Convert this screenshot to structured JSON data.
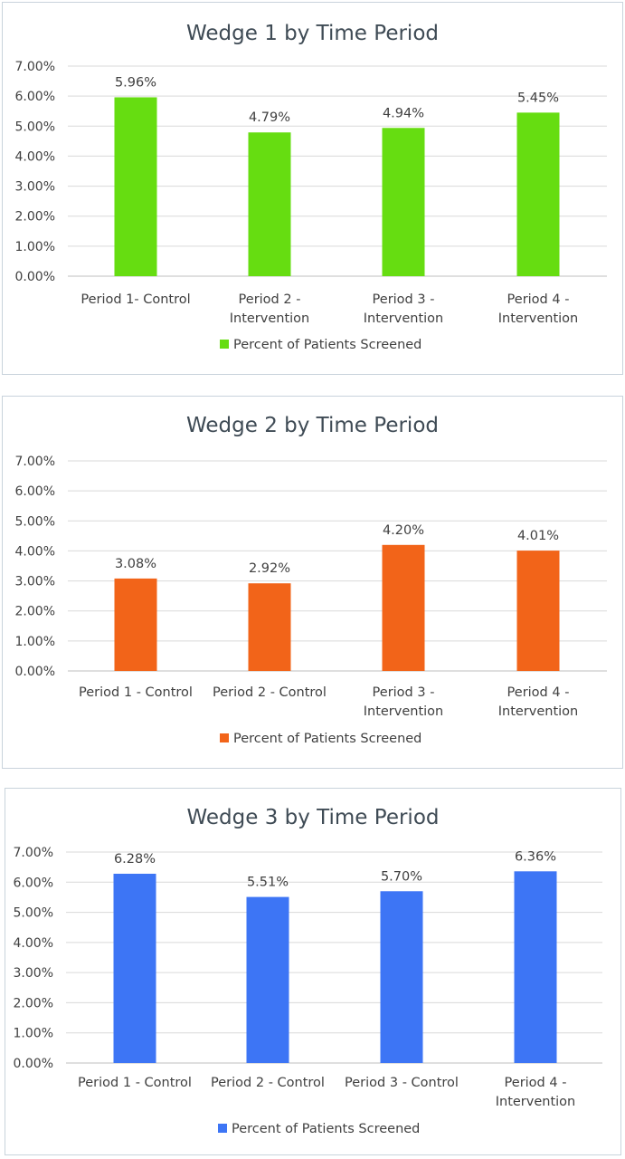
{
  "chart_data": [
    {
      "type": "bar",
      "title": "Wedge 1 by Time Period",
      "categories": [
        [
          "Period 1- Control"
        ],
        [
          "Period 2 -",
          "Intervention"
        ],
        [
          "Period 3 -",
          "Intervention"
        ],
        [
          "Period 4 -",
          "Intervention"
        ]
      ],
      "series": [
        {
          "name": "Percent of Patients Screened",
          "values": [
            5.96,
            4.79,
            4.94,
            5.45
          ],
          "color": "#66dd11"
        }
      ],
      "data_labels": [
        "5.96%",
        "4.79%",
        "4.94%",
        "5.45%"
      ],
      "yticks": [
        "0.00%",
        "1.00%",
        "2.00%",
        "3.00%",
        "4.00%",
        "5.00%",
        "6.00%",
        "7.00%"
      ],
      "ylim": [
        0,
        7
      ],
      "grid": true,
      "legend": "bottom"
    },
    {
      "type": "bar",
      "title": "Wedge 2 by Time Period",
      "categories": [
        [
          "Period 1 - Control"
        ],
        [
          "Period 2 - Control"
        ],
        [
          "Period 3 -",
          "Intervention"
        ],
        [
          "Period 4 -",
          "Intervention"
        ]
      ],
      "series": [
        {
          "name": "Percent of Patients Screened",
          "values": [
            3.08,
            2.92,
            4.2,
            4.01
          ],
          "color": "#f26419"
        }
      ],
      "data_labels": [
        "3.08%",
        "2.92%",
        "4.20%",
        "4.01%"
      ],
      "yticks": [
        "0.00%",
        "1.00%",
        "2.00%",
        "3.00%",
        "4.00%",
        "5.00%",
        "6.00%",
        "7.00%"
      ],
      "ylim": [
        0,
        7
      ],
      "grid": true,
      "legend": "bottom"
    },
    {
      "type": "bar",
      "title": "Wedge 3 by Time Period",
      "categories": [
        [
          "Period 1 - Control"
        ],
        [
          "Period 2 - Control"
        ],
        [
          "Period 3 - Control"
        ],
        [
          "Period 4 -",
          "Intervention"
        ]
      ],
      "series": [
        {
          "name": "Percent of Patients Screened",
          "values": [
            6.28,
            5.51,
            5.7,
            6.36
          ],
          "color": "#3d75f5"
        }
      ],
      "data_labels": [
        "6.28%",
        "5.51%",
        "5.70%",
        "6.36%"
      ],
      "yticks": [
        "0.00%",
        "1.00%",
        "2.00%",
        "3.00%",
        "4.00%",
        "5.00%",
        "6.00%",
        "7.00%"
      ],
      "ylim": [
        0,
        7
      ],
      "grid": true,
      "legend": "bottom"
    }
  ]
}
